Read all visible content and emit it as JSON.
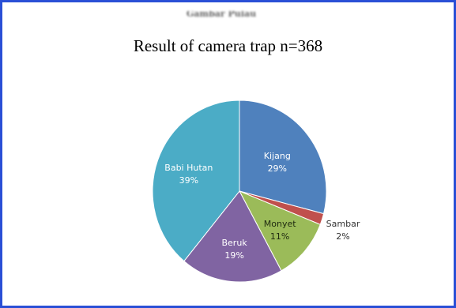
{
  "chart_data": {
    "type": "pie",
    "title": "Result of camera trap n=368",
    "categories": [
      "Kijang",
      "Sambar",
      "Monyet",
      "Beruk",
      "Babi Hutan"
    ],
    "values": [
      29,
      2,
      11,
      19,
      39
    ],
    "labels": [
      "29%",
      "2%",
      "11%",
      "19%",
      "39%"
    ],
    "colors": [
      "#4f81bd",
      "#c0504d",
      "#9bbb59",
      "#8064a2",
      "#4bacc6"
    ],
    "start_angle_deg": 0,
    "direction": "clockwise"
  },
  "header": {
    "blurred_text": "Gambar Pulau"
  }
}
